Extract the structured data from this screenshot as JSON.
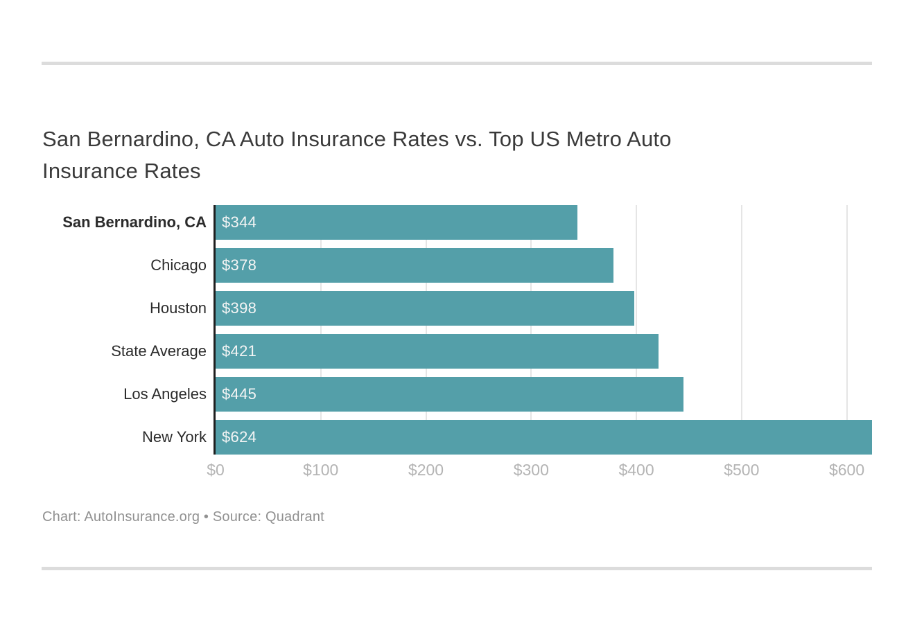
{
  "page": {
    "title_full": "San Bernardino, CA Auto Insurance Rates vs. Top US Metro Auto Insurance Rates",
    "title_lines": [
      "San Bernardino, CA Auto Insurance Rates vs. Top US Metro Auto",
      "Insurance Rates"
    ],
    "footer": "Chart: AutoInsurance.org • Source: Quadrant"
  },
  "colors": {
    "bar": "#549fa9",
    "axis_line": "#1f1f1f",
    "gridline": "#e5e5e5",
    "divider": "#dcdcdc",
    "title_text": "#3a3a3a",
    "category_text": "#2b2b2b",
    "bar_value_text": "#f5f5f5",
    "tick_text": "#b4b4b4",
    "footer_text": "#919191"
  },
  "chart_data": {
    "type": "bar",
    "orientation": "horizontal",
    "title": "San Bernardino, CA Auto Insurance Rates vs. Top US Metro Auto Insurance Rates",
    "categories": [
      "San Bernardino, CA",
      "Chicago",
      "Houston",
      "State Average",
      "Los Angeles",
      "New York"
    ],
    "values": [
      344,
      378,
      398,
      421,
      445,
      624
    ],
    "value_labels": [
      "$344",
      "$378",
      "$398",
      "$421",
      "$445",
      "$624"
    ],
    "bold_category": "San Bernardino, CA",
    "x_ticks": [
      {
        "value": 0,
        "label": "$0"
      },
      {
        "value": 100,
        "label": "$100"
      },
      {
        "value": 200,
        "label": "$200"
      },
      {
        "value": 300,
        "label": "$300"
      },
      {
        "value": 400,
        "label": "$400"
      },
      {
        "value": 500,
        "label": "$500"
      },
      {
        "value": 600,
        "label": "$600"
      }
    ],
    "xlim": [
      0,
      624
    ],
    "grid": true,
    "legend": "none",
    "bar_color": "#549fa9",
    "source_note": "Chart: AutoInsurance.org • Source: Quadrant"
  }
}
